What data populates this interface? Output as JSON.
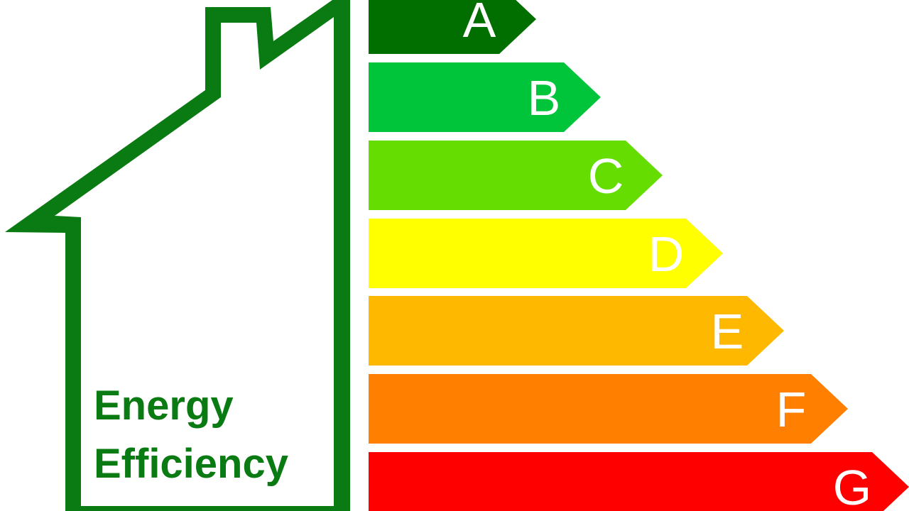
{
  "title_lines": [
    "Energy",
    "Efficiency"
  ],
  "house_color": "#0a7a12",
  "ratings": [
    {
      "label": "A",
      "color": "#006f00"
    },
    {
      "label": "B",
      "color": "#00c43a"
    },
    {
      "label": "C",
      "color": "#66dd00"
    },
    {
      "label": "D",
      "color": "#ffff00"
    },
    {
      "label": "E",
      "color": "#ffb800"
    },
    {
      "label": "F",
      "color": "#ff7f00"
    },
    {
      "label": "G",
      "color": "#ff0000"
    }
  ]
}
